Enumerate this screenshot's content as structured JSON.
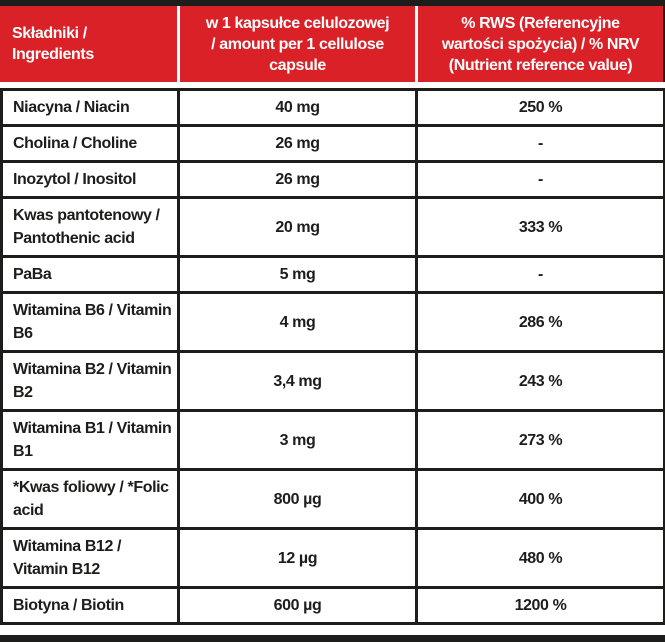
{
  "colors": {
    "red": "#da2128",
    "bar": "#1d1d1b",
    "border": "#1d1d1b",
    "text": "#1d1d1b",
    "header_text": "#ffffff",
    "bg": "#ffffff"
  },
  "table": {
    "header": {
      "ingredients": "Składniki /\nIngredients",
      "amount": "w 1 kapsułce celulozowej\n/ amount per 1 cellulose\ncapsule",
      "nrv": "% RWS (Referencyjne\nwartości spożycia) / % NRV\n(Nutrient reference value)"
    },
    "rows": [
      {
        "ingredient": "Niacyna / Niacin",
        "amount": "40 mg",
        "nrv": "250 %"
      },
      {
        "ingredient": "Cholina / Choline",
        "amount": "26 mg",
        "nrv": "-"
      },
      {
        "ingredient": "Inozytol / Inositol",
        "amount": "26 mg",
        "nrv": "-"
      },
      {
        "ingredient": "Kwas pantotenowy / Pantothenic acid",
        "amount": "20 mg",
        "nrv": "333 %"
      },
      {
        "ingredient": "PaBa",
        "amount": "5 mg",
        "nrv": "-"
      },
      {
        "ingredient": "Witamina B6 / Vitamin B6",
        "amount": "4 mg",
        "nrv": "286 %"
      },
      {
        "ingredient": "Witamina B2 / Vitamin B2",
        "amount": "3,4 mg",
        "nrv": "243 %"
      },
      {
        "ingredient": "Witamina B1 / Vitamin B1",
        "amount": "3 mg",
        "nrv": "273 %"
      },
      {
        "ingredient": "*Kwas foliowy / *Folic acid",
        "amount": "800 µg",
        "nrv": "400 %"
      },
      {
        "ingredient": "Witamina B12 / Vitamin B12",
        "amount": "12 µg",
        "nrv": "480 %"
      },
      {
        "ingredient": "Biotyna / Biotin",
        "amount": "600 µg",
        "nrv": "1200 %"
      }
    ]
  }
}
